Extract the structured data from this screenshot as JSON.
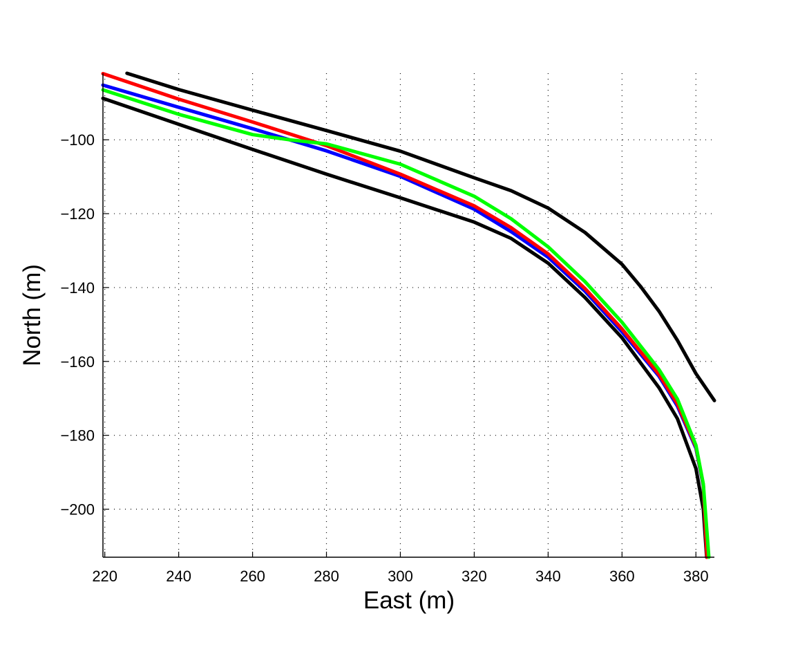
{
  "chart_data": {
    "type": "line",
    "title": "",
    "xlabel": "East (m)",
    "ylabel": "North (m)",
    "xlim": [
      219.5,
      385
    ],
    "ylim": [
      -213,
      -82
    ],
    "xticks": [
      220,
      240,
      260,
      280,
      300,
      320,
      340,
      360,
      380
    ],
    "yticks": [
      -100,
      -120,
      -140,
      -160,
      -180,
      -200
    ],
    "xtick_labels": [
      "220",
      "240",
      "260",
      "280",
      "300",
      "320",
      "340",
      "360",
      "380"
    ],
    "ytick_labels": [
      "−100",
      "−120",
      "−140",
      "−160",
      "−180",
      "−200"
    ],
    "grid": true,
    "series": [
      {
        "color": "#000000",
        "points": [
          [
            226,
            -82
          ],
          [
            240,
            -86.4
          ],
          [
            260,
            -92
          ],
          [
            280,
            -97.5
          ],
          [
            300,
            -103.1
          ],
          [
            320,
            -110.3
          ],
          [
            330,
            -113.8
          ],
          [
            340,
            -118.5
          ],
          [
            350,
            -125.1
          ],
          [
            360,
            -133.7
          ],
          [
            365,
            -139.7
          ],
          [
            370,
            -146.4
          ],
          [
            375,
            -154.3
          ],
          [
            380,
            -163.3
          ],
          [
            385,
            -170.6
          ]
        ]
      },
      {
        "color": "#000000",
        "points": [
          [
            219.5,
            -88.8
          ],
          [
            240,
            -95.8
          ],
          [
            260,
            -102.6
          ],
          [
            280,
            -109.3
          ],
          [
            300,
            -115.7
          ],
          [
            320,
            -122.3
          ],
          [
            330,
            -126.7
          ],
          [
            340,
            -133.4
          ],
          [
            350,
            -142.7
          ],
          [
            360,
            -153.6
          ],
          [
            370,
            -167.1
          ],
          [
            375,
            -175.5
          ],
          [
            380,
            -189
          ],
          [
            382,
            -200
          ],
          [
            382.9,
            -213
          ]
        ]
      },
      {
        "color": "#0000ff",
        "points": [
          [
            219.5,
            -85.2
          ],
          [
            240,
            -91.2
          ],
          [
            260,
            -97
          ],
          [
            280,
            -103
          ],
          [
            300,
            -109.9
          ],
          [
            320,
            -118.8
          ],
          [
            330,
            -124.9
          ],
          [
            340,
            -131.8
          ],
          [
            350,
            -141
          ],
          [
            360,
            -152
          ],
          [
            370,
            -164
          ],
          [
            375,
            -172.1
          ],
          [
            380,
            -183.5
          ],
          [
            382,
            -193.7
          ],
          [
            383,
            -213
          ]
        ]
      },
      {
        "color": "#ff0000",
        "points": [
          [
            219.5,
            -82.1
          ],
          [
            240,
            -89
          ],
          [
            260,
            -95.2
          ],
          [
            280,
            -101.6
          ],
          [
            300,
            -109.3
          ],
          [
            320,
            -117.9
          ],
          [
            330,
            -123.8
          ],
          [
            340,
            -130.9
          ],
          [
            350,
            -140.3
          ],
          [
            360,
            -151.2
          ],
          [
            370,
            -163.5
          ],
          [
            375,
            -171.5
          ],
          [
            380,
            -183.1
          ],
          [
            382,
            -193.4
          ],
          [
            383,
            -213
          ]
        ]
      },
      {
        "color": "#00ff00",
        "points": [
          [
            219.5,
            -86.5
          ],
          [
            240,
            -93.1
          ],
          [
            260,
            -98.6
          ],
          [
            270,
            -100
          ],
          [
            280,
            -101.1
          ],
          [
            300,
            -106.6
          ],
          [
            320,
            -115.3
          ],
          [
            330,
            -121.4
          ],
          [
            340,
            -129
          ],
          [
            350,
            -138.4
          ],
          [
            360,
            -149.4
          ],
          [
            370,
            -162.2
          ],
          [
            375,
            -170.2
          ],
          [
            380,
            -182.7
          ],
          [
            382,
            -193.2
          ],
          [
            383.5,
            -213
          ]
        ]
      }
    ]
  }
}
